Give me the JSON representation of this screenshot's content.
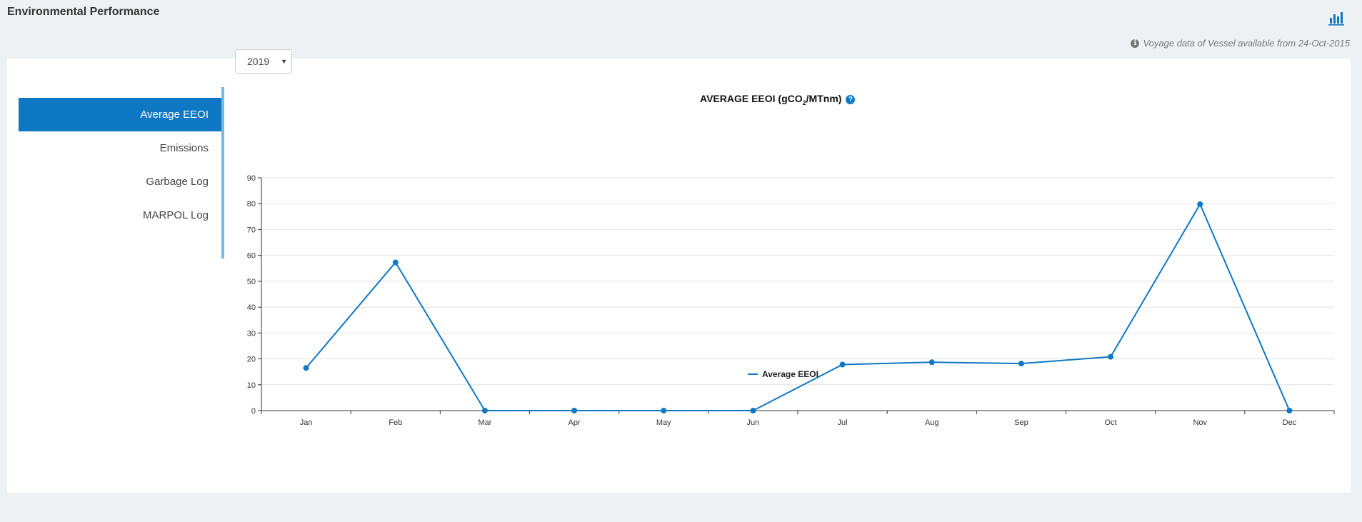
{
  "page": {
    "title": "Environmental Performance",
    "chart_icon": "bar-chart-icon",
    "voyage_note": "Voyage data of Vessel available from 24-Oct-2015",
    "info_icon": "info-circle-icon"
  },
  "sidebar": {
    "items": [
      {
        "label": "Average EEOI",
        "active": true
      },
      {
        "label": "Emissions",
        "active": false
      },
      {
        "label": "Garbage Log",
        "active": false
      },
      {
        "label": "MARPOL Log",
        "active": false
      }
    ]
  },
  "filter": {
    "year": "2019"
  },
  "colors": {
    "accent": "#0e78c4",
    "nav_border": "#79b8e2",
    "grid": "#e2e2e2"
  },
  "chart_data": {
    "type": "line",
    "title_prefix": "AVERAGE EEOI (gCO",
    "title_sub": "2",
    "title_suffix": "/MTnm)",
    "categories": [
      "Jan",
      "Feb",
      "Mar",
      "Apr",
      "May",
      "Jun",
      "Jul",
      "Aug",
      "Sep",
      "Oct",
      "Nov",
      "Dec"
    ],
    "series": [
      {
        "name": "Average EEOI",
        "values": [
          16.5,
          57.3,
          0,
          0,
          0,
          0,
          17.8,
          18.7,
          18.2,
          20.8,
          79.8,
          0
        ]
      }
    ],
    "ylim": [
      0,
      90
    ],
    "yticks": [
      0,
      10,
      20,
      30,
      40,
      50,
      60,
      70,
      80,
      90
    ],
    "grid": true,
    "legend": "bottom-center"
  }
}
